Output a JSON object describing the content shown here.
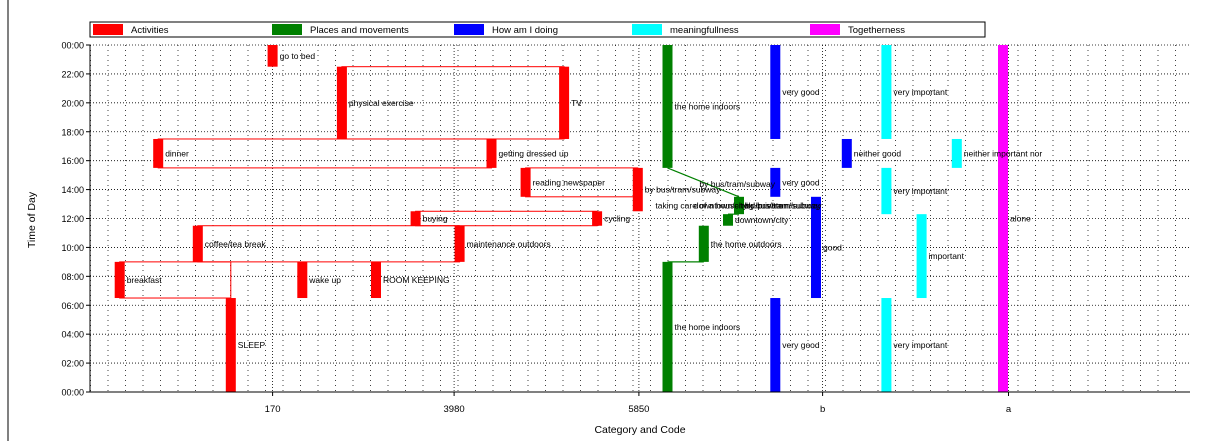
{
  "chart_data": {
    "type": "timeline",
    "xlabel": "Category and Code",
    "ylabel": "Time of Day",
    "y_unit": "hours",
    "ylim": [
      0,
      24
    ],
    "y_ticks": [
      "00:00",
      "02:00",
      "04:00",
      "06:00",
      "08:00",
      "10:00",
      "12:00",
      "14:00",
      "16:00",
      "18:00",
      "20:00",
      "22:00",
      "00:00"
    ],
    "xlim": [
      0,
      100
    ],
    "x_ticks": [
      {
        "label": "170",
        "x": 16.6
      },
      {
        "label": "3980",
        "x": 33.1
      },
      {
        "label": "5850",
        "x": 49.9
      },
      {
        "label": "b",
        "x": 66.6
      },
      {
        "label": "a",
        "x": 83.5
      }
    ],
    "grid": true,
    "legend_position": "top",
    "colors": {
      "activities": "#ff0000",
      "places": "#008000",
      "how": "#0000ff",
      "meaning": "#00ffff",
      "together": "#ff00ff"
    },
    "series": [
      {
        "key": "activities",
        "name": "Activities",
        "color": "#ff0000"
      },
      {
        "key": "places",
        "name": "Places and movements",
        "color": "#008000"
      },
      {
        "key": "how",
        "name": "How am I doing",
        "color": "#0000ff"
      },
      {
        "key": "meaning",
        "name": "meaningfullness",
        "color": "#00ffff"
      },
      {
        "key": "together",
        "name": "Togetherness",
        "color": "#ff00ff"
      }
    ],
    "segments": [
      {
        "series": "activities",
        "label": "SLEEP",
        "x": 12.8,
        "start": 0,
        "end": 6.5
      },
      {
        "series": "activities",
        "label": "breakfast",
        "x": 2.7,
        "start": 6.5,
        "end": 9
      },
      {
        "series": "activities",
        "label": "wake up",
        "x": 19.3,
        "start": 6.5,
        "end": 9
      },
      {
        "series": "activities",
        "label": "ROOM KEEPING",
        "x": 26.0,
        "start": 6.5,
        "end": 9
      },
      {
        "series": "activities",
        "label": "coffee/tea break",
        "x": 9.8,
        "start": 9,
        "end": 11.5
      },
      {
        "series": "activities",
        "label": "maintenance outdoors",
        "x": 33.6,
        "start": 9,
        "end": 11.5
      },
      {
        "series": "activities",
        "label": "buying",
        "x": 29.6,
        "start": 11.5,
        "end": 12.5
      },
      {
        "series": "activities",
        "label": "cycling",
        "x": 46.1,
        "start": 11.5,
        "end": 12.5
      },
      {
        "series": "activities",
        "label": "by bus/tram/subway",
        "x": 49.8,
        "start": 12.5,
        "end": 15.5
      },
      {
        "series": "activities",
        "label": "reading newspaper",
        "x": 39.6,
        "start": 13.5,
        "end": 15.5
      },
      {
        "series": "activities",
        "label": "dinner",
        "x": 6.2,
        "start": 15.5,
        "end": 17.5
      },
      {
        "series": "activities",
        "label": "getting dressed up",
        "x": 36.5,
        "start": 15.5,
        "end": 17.5
      },
      {
        "series": "activities",
        "label": "physical exercise",
        "x": 22.9,
        "start": 17.5,
        "end": 22.5
      },
      {
        "series": "activities",
        "label": "TV",
        "x": 43.1,
        "start": 17.5,
        "end": 22.5
      },
      {
        "series": "activities",
        "label": "go to bed",
        "x": 16.6,
        "start": 22.5,
        "end": 24
      },
      {
        "series": "places",
        "label": "the home indoors",
        "x": 52.5,
        "start": 0,
        "end": 9
      },
      {
        "series": "places",
        "label": "the home outdoors",
        "x": 55.8,
        "start": 9,
        "end": 11.5
      },
      {
        "series": "places",
        "label": "downtown/city",
        "x": 58.0,
        "start": 11.5,
        "end": 12.3
      },
      {
        "series": "places",
        "label": "by bus/tram/subway",
        "x": 59.0,
        "start": 12.3,
        "end": 13.5
      },
      {
        "series": "places",
        "label": "the home indoors",
        "x": 52.5,
        "start": 15.5,
        "end": 24
      },
      {
        "series": "how",
        "label": "very good",
        "x": 62.3,
        "start": 0,
        "end": 6.5
      },
      {
        "series": "how",
        "label": "good",
        "x": 66.0,
        "start": 6.5,
        "end": 13.5
      },
      {
        "series": "how",
        "label": "very good",
        "x": 62.3,
        "start": 13.5,
        "end": 15.5
      },
      {
        "series": "how",
        "label": "neither good",
        "x": 68.8,
        "start": 15.5,
        "end": 17.5
      },
      {
        "series": "how",
        "label": "very good",
        "x": 62.3,
        "start": 17.5,
        "end": 24
      },
      {
        "series": "meaning",
        "label": "very important",
        "x": 72.4,
        "start": 0,
        "end": 6.5
      },
      {
        "series": "meaning",
        "label": "important",
        "x": 75.6,
        "start": 6.5,
        "end": 12.3
      },
      {
        "series": "meaning",
        "label": "very important",
        "x": 72.4,
        "start": 12.3,
        "end": 15.5
      },
      {
        "series": "meaning",
        "label": "neither important nor",
        "x": 78.8,
        "start": 15.5,
        "end": 17.5
      },
      {
        "series": "meaning",
        "label": "very important",
        "x": 72.4,
        "start": 17.5,
        "end": 24
      },
      {
        "series": "together",
        "label": "alone",
        "x": 83.0,
        "start": 0,
        "end": 24
      }
    ],
    "overlap_labels": [
      {
        "series": "places",
        "label": "by bus/tram/subway",
        "x": 55.4,
        "y": 14.4
      },
      {
        "series": "activities",
        "label": "taking care of a household/private",
        "x": 51.4,
        "y": 12.9
      },
      {
        "series": "places",
        "label": "downtown/city",
        "x": 54.9,
        "y": 12.9
      },
      {
        "series": "places",
        "label": "by bus/tram/subway",
        "x": 59.5,
        "y": 12.9
      }
    ],
    "connectors": [
      {
        "series": "places",
        "from": [
          52.5,
          15.5
        ],
        "to": [
          59.0,
          13.5
        ]
      },
      {
        "series": "places",
        "from": [
          59.0,
          12.3
        ],
        "to": [
          58.0,
          12.3
        ]
      },
      {
        "series": "places",
        "from": [
          52.5,
          9
        ],
        "to": [
          55.8,
          9
        ]
      }
    ]
  }
}
